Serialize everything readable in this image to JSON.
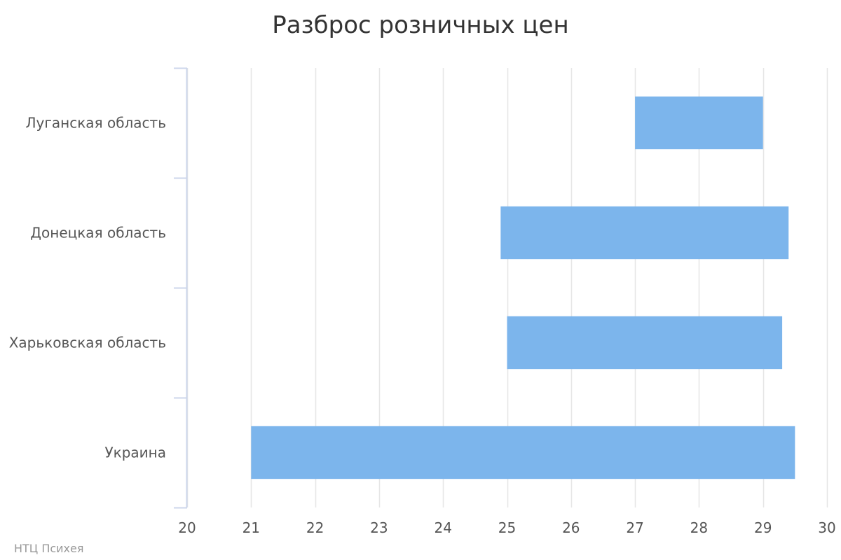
{
  "chart_data": {
    "type": "bar",
    "orientation": "horizontal",
    "subtype": "range",
    "title": "Разброс розничных цен",
    "categories": [
      "Луганская область",
      "Донецкая область",
      "Харьковская область",
      "Украина"
    ],
    "series": [
      {
        "ranges": [
          [
            27.0,
            29.0
          ],
          [
            24.9,
            29.4
          ],
          [
            25.0,
            29.3
          ],
          [
            21.0,
            29.5
          ]
        ]
      }
    ],
    "xlim": [
      20,
      30
    ],
    "xticks": [
      20,
      21,
      22,
      23,
      24,
      25,
      26,
      27,
      28,
      29,
      30
    ],
    "grid": true,
    "legend": "none",
    "bar_color": "#7cb5ec",
    "grid_color": "#e6e6e6",
    "axis_color": "#ccd6eb"
  },
  "credits": "НТЦ Психея"
}
